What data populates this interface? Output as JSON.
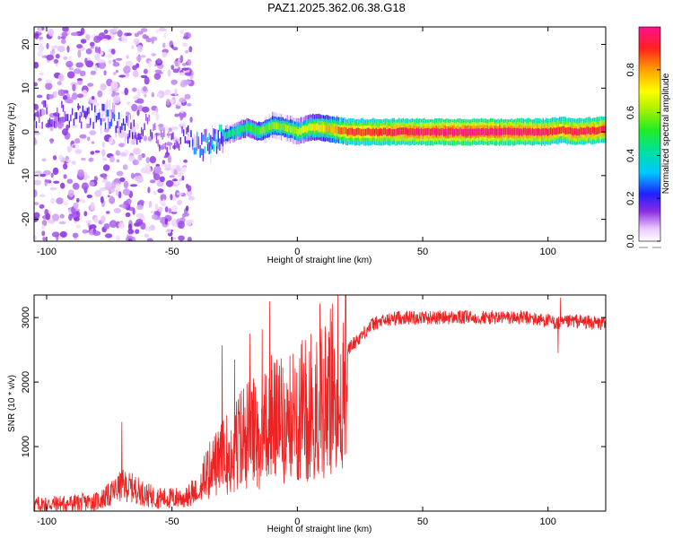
{
  "title": "PAZ1.2025.362.06.38.G18",
  "chart_data": [
    {
      "type": "heatmap",
      "name": "spectrogram",
      "xlabel": "Height of straight line (km)",
      "ylabel": "Frequency (Hz)",
      "xlim": [
        -105,
        123
      ],
      "ylim": [
        -25,
        24
      ],
      "xticks": [
        -100,
        -50,
        0,
        50,
        100
      ],
      "yticks": [
        -20,
        -10,
        0,
        10,
        20
      ],
      "colorbar": {
        "label": "Normalized spectral amplitude",
        "range": [
          0,
          1
        ],
        "ticks": [
          "0.0",
          "0.2",
          "0.4",
          "0.6",
          "0.8"
        ],
        "tick_values": [
          0.0,
          0.2,
          0.4,
          0.6,
          0.8
        ]
      },
      "ridge": {
        "description_points_km": [
          -90,
          -80,
          -75,
          -70,
          -65,
          -60,
          -55,
          -50,
          -45,
          -40,
          -35,
          -30,
          -25,
          -20,
          -15,
          -10,
          -5,
          0,
          5,
          10,
          15,
          20,
          25,
          40,
          60,
          80,
          100,
          105,
          110,
          123
        ],
        "frequency_hz": [
          4,
          3,
          4,
          1,
          0,
          2,
          -2,
          -3,
          -1,
          -3,
          -3,
          -1,
          0,
          1,
          0,
          1.5,
          1,
          0,
          1,
          1,
          0.5,
          0,
          0,
          0,
          0,
          0,
          0,
          0.5,
          0,
          0.5
        ],
        "amplitude": [
          0.15,
          0.2,
          0.25,
          0.2,
          0.18,
          0.15,
          0.1,
          0.12,
          0.15,
          0.3,
          0.35,
          0.4,
          0.45,
          0.5,
          0.55,
          0.6,
          0.6,
          0.65,
          0.7,
          0.75,
          0.8,
          0.9,
          0.9,
          0.95,
          1.0,
          1.0,
          0.95,
          0.9,
          0.95,
          0.95
        ]
      }
    },
    {
      "type": "line",
      "name": "snr",
      "xlabel": "Height of straight line (km)",
      "ylabel": "SNR (10 * v/v)",
      "xlim": [
        -105,
        123
      ],
      "ylim": [
        0,
        3350
      ],
      "xticks": [
        -100,
        -50,
        0,
        50,
        100
      ],
      "yticks": [
        1000,
        2000,
        3000
      ],
      "color": "#ee2222",
      "envelope_x": [
        -105,
        -90,
        -80,
        -75,
        -70,
        -65,
        -60,
        -55,
        -50,
        -45,
        -40,
        -35,
        -30,
        -25,
        -20,
        -15,
        -10,
        -5,
        0,
        5,
        10,
        15,
        20,
        25,
        30,
        40,
        50,
        60,
        70,
        80,
        90,
        100,
        105,
        110,
        123
      ],
      "envelope_y": [
        100,
        120,
        150,
        250,
        400,
        350,
        250,
        200,
        200,
        220,
        400,
        700,
        900,
        1100,
        1400,
        1300,
        1600,
        1500,
        1700,
        1800,
        1900,
        2200,
        2500,
        2700,
        2900,
        3000,
        3000,
        3000,
        3000,
        3000,
        3000,
        2950,
        2900,
        2950,
        2900
      ],
      "spikes": [
        [
          -70,
          1380
        ],
        [
          -11,
          3250
        ],
        [
          -14,
          2820
        ],
        [
          -30,
          2570
        ],
        [
          9,
          3220
        ],
        [
          105,
          3310
        ],
        [
          104,
          2450
        ],
        [
          8,
          950
        ],
        [
          -25,
          2350
        ],
        [
          -19,
          2750
        ]
      ]
    }
  ]
}
